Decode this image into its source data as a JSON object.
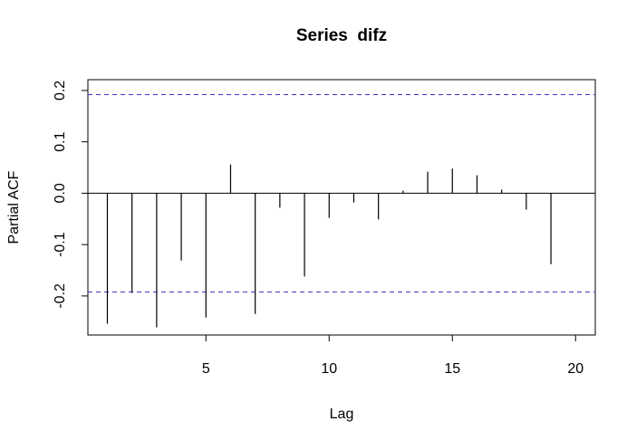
{
  "chart_data": {
    "type": "stem",
    "title": "Series  difz",
    "x_label": "Lag",
    "y_label": "Partial ACF",
    "x": [
      1,
      2,
      3,
      4,
      5,
      6,
      7,
      8,
      9,
      10,
      11,
      12,
      13,
      14,
      15,
      16,
      17,
      18,
      19
    ],
    "values": [
      -0.254,
      -0.194,
      -0.261,
      -0.131,
      -0.242,
      0.056,
      -0.235,
      -0.028,
      -0.162,
      -0.048,
      -0.018,
      -0.051,
      0.005,
      0.042,
      0.048,
      0.035,
      0.007,
      -0.032,
      -0.138
    ],
    "color": "#000000",
    "confidence_bounds": [
      0.192,
      -0.192
    ],
    "confidence_color": "#3333cc",
    "xlim": [
      0.21,
      20.8
    ],
    "xticks": [
      5,
      10,
      15,
      20
    ],
    "ylim": [
      -0.276,
      0.221
    ],
    "yticks": [
      -0.2,
      -0.1,
      {
        "value": 0,
        "label": "0.0"
      },
      0.1,
      0.2
    ]
  }
}
